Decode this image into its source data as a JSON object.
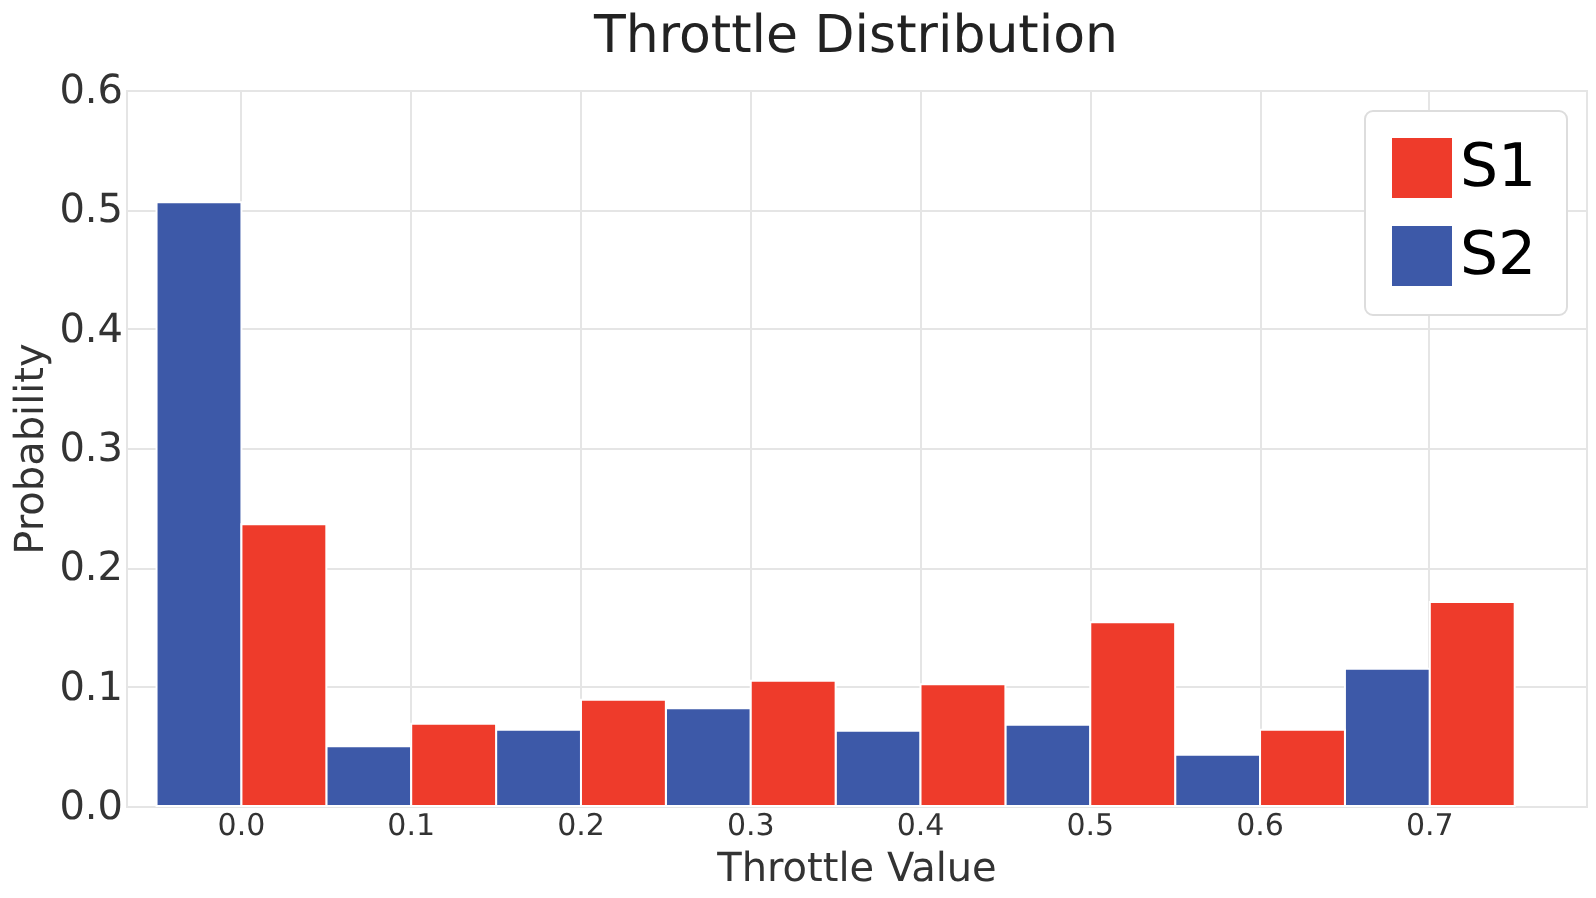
{
  "chart_data": {
    "type": "bar",
    "title": "Throttle Distribution",
    "xlabel": "Throttle Value",
    "ylabel": "Probability",
    "categories": [
      "0.0",
      "0.1",
      "0.2",
      "0.3",
      "0.4",
      "0.5",
      "0.6",
      "0.7"
    ],
    "series": [
      {
        "name": "S2",
        "color": "#3d59a8",
        "values": [
          0.506,
          0.05,
          0.064,
          0.082,
          0.063,
          0.068,
          0.043,
          0.115
        ]
      },
      {
        "name": "S1",
        "color": "#ee3b2b",
        "values": [
          0.236,
          0.069,
          0.089,
          0.105,
          0.102,
          0.154,
          0.064,
          0.171
        ]
      }
    ],
    "ylim": [
      0,
      0.6
    ],
    "yticks": [
      {
        "value": 0,
        "label": "0.0"
      },
      0.1,
      0.2,
      0.3,
      0.4,
      0.5,
      0.6
    ],
    "grid": true,
    "legend": "top right"
  }
}
